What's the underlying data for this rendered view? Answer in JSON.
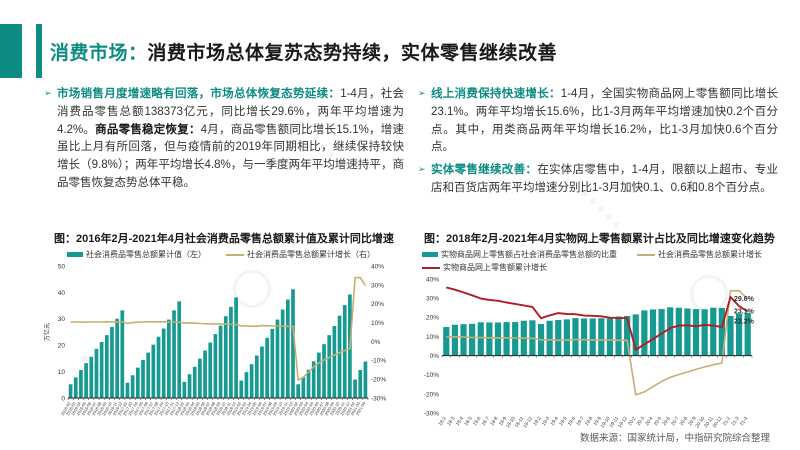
{
  "colors": {
    "accent": "#0E8C84",
    "bar_teal": "#169A91",
    "line_tan": "#C5AF72",
    "line_red": "#B01E23"
  },
  "header": {
    "tag": "消费市场：",
    "title": "消费市场总体复苏态势持续，实体零售继续改善"
  },
  "bullets": {
    "left": [
      {
        "segments": [
          {
            "t": "市场销售月度增速略有回落，市场总体恢复态势延续：",
            "s": "lead"
          },
          {
            "t": "1-4月，社会消费品零售总额138373亿元，同比增长29.6%，两年平均增速为4.2%。",
            "s": "normal"
          },
          {
            "t": "商品零售稳定恢复：",
            "s": "bold"
          },
          {
            "t": "4月，商品零售额同比增长15.1%，增速虽比上月有所回落，但与疫情前的2019年同期相比，继续保持较快增长（9.8%）；两年平均增长4.8%，与一季度两年平均增速持平，商品零售恢复态势总体平稳。",
            "s": "normal"
          }
        ]
      }
    ],
    "right": [
      {
        "segments": [
          {
            "t": "线上消费保持快速增长：",
            "s": "lead"
          },
          {
            "t": "1-4月，全国实物商品网上零售额同比增长23.1%。两年平均增长15.6%，比1-3月两年平均增速加快0.2个百分点。其中，用类商品两年平均增长16.2%，比1-3月加快0.6个百分点。",
            "s": "normal"
          }
        ]
      },
      {
        "segments": [
          {
            "t": "实体零售继续改善：",
            "s": "lead"
          },
          {
            "t": "在实体店零售中，1-4月，限额以上超市、专业店和百货店两年平均增速分别比1-3月加快0.1、0.6和0.8个百分点。",
            "s": "normal"
          }
        ]
      }
    ]
  },
  "chart_data": [
    {
      "type": "bar",
      "title": "图：2016年2月-2021年4月社会消费品零售总额累计值及累计同比增速",
      "categories": [
        "2016-02",
        "2016-03",
        "2016-04",
        "2016-05",
        "2016-06",
        "2016-07",
        "2016-08",
        "2016-09",
        "2016-10",
        "2016-11",
        "2016-12",
        "2017-02",
        "2017-03",
        "2017-04",
        "2017-05",
        "2017-06",
        "2017-07",
        "2017-08",
        "2017-09",
        "2017-10",
        "2017-11",
        "2017-12",
        "2018-02",
        "2018-03",
        "2018-04",
        "2018-05",
        "2018-06",
        "2018-07",
        "2018-08",
        "2018-09",
        "2018-10",
        "2018-11",
        "2018-12",
        "2019-02",
        "2019-03",
        "2019-04",
        "2019-05",
        "2019-06",
        "2019-07",
        "2019-08",
        "2019-09",
        "2019-10",
        "2019-11",
        "2019-12",
        "2020-02",
        "2020-03",
        "2020-04",
        "2020-05",
        "2020-06",
        "2020-07",
        "2020-08",
        "2020-09",
        "2020-10",
        "2020-11",
        "2020-12",
        "2021-02",
        "2021-03",
        "2021-04"
      ],
      "series": [
        {
          "name": "社会消费品零售总额累计值（左）",
          "kind": "bar",
          "axis": "left",
          "color": "#169A91",
          "values": [
            5.2,
            7.8,
            10.6,
            13.2,
            15.6,
            18.6,
            21.2,
            23.8,
            26.9,
            30.0,
            33.2,
            5.8,
            8.6,
            11.5,
            14.4,
            17.2,
            20.2,
            23.2,
            26.3,
            29.7,
            33.2,
            36.6,
            6.1,
            9.0,
            11.8,
            14.9,
            18.0,
            21.0,
            24.2,
            27.4,
            31.0,
            34.5,
            38.1,
            6.6,
            9.8,
            12.8,
            16.1,
            19.5,
            22.8,
            26.2,
            29.7,
            33.5,
            37.3,
            41.2,
            5.2,
            7.9,
            10.7,
            13.9,
            17.2,
            20.4,
            23.8,
            27.3,
            31.2,
            35.2,
            39.2,
            7.0,
            10.6,
            13.8
          ]
        },
        {
          "name": "社会消费品零售总额累计增长（右）",
          "kind": "line",
          "axis": "right",
          "color": "#C5AF72",
          "values": [
            10.2,
            10.3,
            10.3,
            10.2,
            10.3,
            10.3,
            10.3,
            10.4,
            10.3,
            10.4,
            10.4,
            9.5,
            10.0,
            10.2,
            10.3,
            10.4,
            10.4,
            10.4,
            10.4,
            10.3,
            10.3,
            10.2,
            9.7,
            9.8,
            9.7,
            9.5,
            9.4,
            9.3,
            9.3,
            9.3,
            9.2,
            9.1,
            9.0,
            8.2,
            8.3,
            8.0,
            8.1,
            8.4,
            8.3,
            8.2,
            8.2,
            8.1,
            8.0,
            8.0,
            -20.5,
            -19.0,
            -16.2,
            -13.5,
            -11.4,
            -9.9,
            -8.6,
            -7.2,
            -5.9,
            -4.8,
            -3.9,
            33.8,
            33.9,
            29.6
          ]
        }
      ],
      "left_axis": {
        "min": 0,
        "max": 50,
        "step": 10,
        "suffix": "",
        "title": "万亿元"
      },
      "right_axis": {
        "min": -30,
        "max": 40,
        "step": 10,
        "suffix": "%"
      },
      "legend_position": "top-center",
      "grid": false
    },
    {
      "type": "bar",
      "title": "图：2018年2月-2021年4月实物网上零售额累计占比及同比增速变化趋势",
      "categories": [
        "18-2",
        "18-3",
        "18-4",
        "18-5",
        "18-6",
        "18-7",
        "18-8",
        "18-9",
        "18-10",
        "18-11",
        "18-12",
        "19-2",
        "19-3",
        "19-4",
        "19-5",
        "19-6",
        "19-7",
        "19-8",
        "19-9",
        "19-10",
        "19-11",
        "19-12",
        "20-2",
        "20-3",
        "20-4",
        "20-5",
        "20-6",
        "20-7",
        "20-8",
        "20-9",
        "20-10",
        "20-11",
        "20-12",
        "21-2",
        "21-3",
        "21-4"
      ],
      "series": [
        {
          "name": "实物商品网上零售额占社会消费品零售总额的比重",
          "kind": "bar",
          "axis": "left",
          "color": "#169A91",
          "end_label": "22.2%",
          "values": [
            14.9,
            16.1,
            16.4,
            16.6,
            17.4,
            17.3,
            17.3,
            17.5,
            17.5,
            18.2,
            18.4,
            16.5,
            18.2,
            18.6,
            18.9,
            19.6,
            19.4,
            19.4,
            19.5,
            19.5,
            20.4,
            20.7,
            21.5,
            23.6,
            24.1,
            24.3,
            25.2,
            25.0,
            24.6,
            24.3,
            24.2,
            25.0,
            24.9,
            20.7,
            21.9,
            22.2
          ]
        },
        {
          "name": "社会消费品零售总额累计增长",
          "kind": "line",
          "axis": "left",
          "color": "#C5AF72",
          "end_label": "29.6%",
          "values": [
            9.7,
            9.8,
            9.7,
            9.5,
            9.4,
            9.3,
            9.3,
            9.3,
            9.2,
            9.1,
            9.0,
            8.2,
            8.3,
            8.0,
            8.1,
            8.4,
            8.3,
            8.2,
            8.2,
            8.1,
            8.0,
            8.0,
            -20.5,
            -19.0,
            -16.2,
            -13.5,
            -11.4,
            -9.9,
            -8.6,
            -7.2,
            -5.9,
            -4.8,
            -3.9,
            33.8,
            33.9,
            29.6
          ]
        },
        {
          "name": "实物商品网上零售额累计增长",
          "kind": "line",
          "axis": "left",
          "color": "#B01E23",
          "end_label": "23.1%",
          "values": [
            35.6,
            34.4,
            33.0,
            31.5,
            29.8,
            29.1,
            28.6,
            27.7,
            27.0,
            26.2,
            25.4,
            19.5,
            21.0,
            22.2,
            21.7,
            21.6,
            20.9,
            20.8,
            20.5,
            19.8,
            19.7,
            19.5,
            3.0,
            5.9,
            8.6,
            11.5,
            14.3,
            15.7,
            15.8,
            15.3,
            16.0,
            15.7,
            14.8,
            30.6,
            25.8,
            23.1
          ]
        }
      ],
      "left_axis": {
        "min": -30,
        "max": 40,
        "step": 10,
        "suffix": "%"
      },
      "legend_position": "top-left",
      "grid": false
    }
  ],
  "source_note": "数据来源：国家统计局，中指研究院综合整理"
}
